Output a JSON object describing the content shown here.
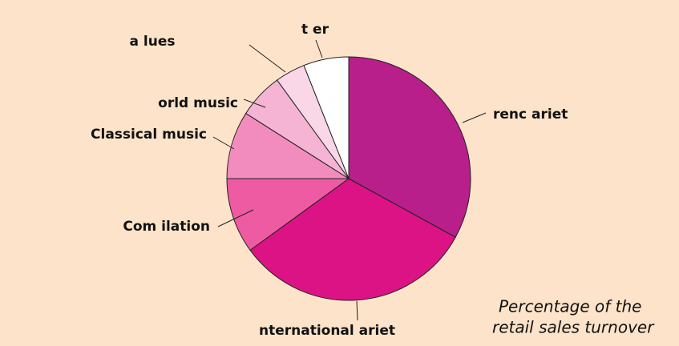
{
  "chart_data": {
    "type": "pie",
    "categories": [
      "renc ariet",
      "nternational ariet",
      "Com ilation",
      "Classical music",
      "orld music",
      "a lues",
      "t er"
    ],
    "values": [
      33,
      32,
      10,
      9,
      6,
      4,
      6
    ],
    "colors": [
      "#b81f8a",
      "#dc1385",
      "#ee5ba2",
      "#f28cbf",
      "#f5b4d3",
      "#f9d7e7",
      "#ffffff"
    ],
    "annotation": [
      "Percentage of the",
      "retail sales turnover"
    ]
  }
}
